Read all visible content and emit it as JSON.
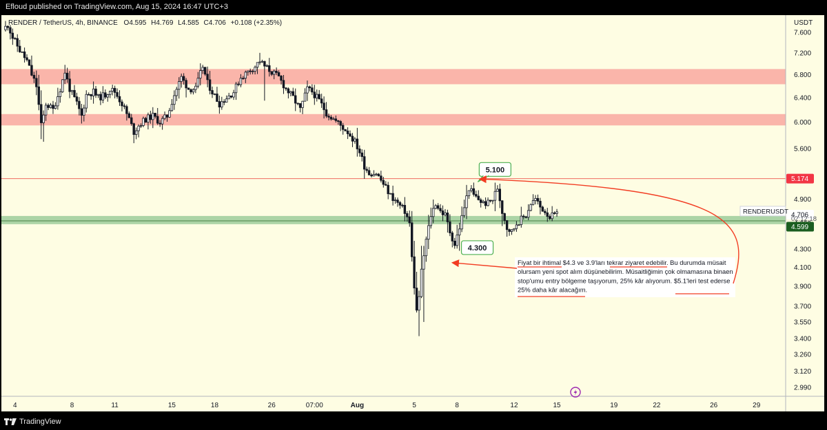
{
  "publisher": {
    "text": "Efloud published on TradingView.com, Aug 15, 2024 16:47 UTC+3"
  },
  "footer": {
    "brand": "TradingView",
    "logo_icon": "tradingview-logo-icon"
  },
  "chart_header": {
    "symbol": "RENDER / TetherUS, 4h, BINANCE",
    "open": "O4.595",
    "high": "H4.769",
    "low": "L4.585",
    "close": "C4.706",
    "change": "+0.108 (+2.35%)"
  },
  "chart_data": {
    "type": "candlestick",
    "symbol": "RENDERUSDT",
    "currency": "USDT",
    "timeframe": "4h",
    "exchange": "BINANCE",
    "y_scale": "log",
    "ylim": [
      2.92,
      7.95
    ],
    "y_ticks": [
      "7.600",
      "7.200",
      "6.800",
      "6.400",
      "6.000",
      "5.600",
      "5.200",
      "4.900",
      "4.600",
      "4.300",
      "4.100",
      "3.900",
      "3.700",
      "3.550",
      "3.400",
      "3.260",
      "3.120",
      "2.990"
    ],
    "x_ticks": [
      {
        "label": "4",
        "bar": 4
      },
      {
        "label": "8",
        "bar": 28
      },
      {
        "label": "11",
        "bar": 46
      },
      {
        "label": "15",
        "bar": 70
      },
      {
        "label": "18",
        "bar": 88
      },
      {
        "label": "26",
        "bar": 112
      },
      {
        "label": "07:00",
        "bar": 130
      },
      {
        "label": "Aug",
        "bar": 148
      },
      {
        "label": "5",
        "bar": 172
      },
      {
        "label": "8",
        "bar": 190
      },
      {
        "label": "12",
        "bar": 214
      },
      {
        "label": "15",
        "bar": 232
      },
      {
        "label": "19",
        "bar": 256
      },
      {
        "label": "22",
        "bar": 274
      },
      {
        "label": "26",
        "bar": 298
      },
      {
        "label": "29",
        "bar": 316
      }
    ],
    "bar_count_axis": 330,
    "anchors": [
      [
        0,
        7.65
      ],
      [
        2,
        7.75
      ],
      [
        4,
        7.5
      ],
      [
        7,
        7.25
      ],
      [
        10,
        7.05
      ],
      [
        12,
        6.8
      ],
      [
        14,
        6.6
      ],
      [
        16,
        5.95
      ],
      [
        17,
        6.1
      ],
      [
        18,
        6.3
      ],
      [
        21,
        6.2
      ],
      [
        24,
        6.55
      ],
      [
        26,
        6.85
      ],
      [
        28,
        6.55
      ],
      [
        31,
        6.3
      ],
      [
        33,
        6.1
      ],
      [
        35,
        6.45
      ],
      [
        38,
        6.5
      ],
      [
        40,
        6.4
      ],
      [
        43,
        6.45
      ],
      [
        45,
        6.55
      ],
      [
        47,
        6.5
      ],
      [
        50,
        6.3
      ],
      [
        53,
        6.05
      ],
      [
        55,
        5.85
      ],
      [
        57,
        5.95
      ],
      [
        60,
        6.05
      ],
      [
        63,
        6.1
      ],
      [
        66,
        6.0
      ],
      [
        69,
        6.1
      ],
      [
        72,
        6.45
      ],
      [
        75,
        6.75
      ],
      [
        78,
        6.55
      ],
      [
        81,
        6.55
      ],
      [
        84,
        6.95
      ],
      [
        86,
        6.65
      ],
      [
        88,
        6.5
      ],
      [
        91,
        6.3
      ],
      [
        94,
        6.4
      ],
      [
        97,
        6.5
      ],
      [
        100,
        6.75
      ],
      [
        103,
        6.85
      ],
      [
        106,
        6.95
      ],
      [
        108,
        7.05
      ],
      [
        110,
        6.95
      ],
      [
        113,
        6.85
      ],
      [
        116,
        6.75
      ],
      [
        119,
        6.55
      ],
      [
        122,
        6.4
      ],
      [
        125,
        6.2
      ],
      [
        128,
        6.55
      ],
      [
        130,
        6.5
      ],
      [
        133,
        6.35
      ],
      [
        136,
        6.15
      ],
      [
        139,
        6.05
      ],
      [
        142,
        5.95
      ],
      [
        145,
        5.85
      ],
      [
        148,
        5.7
      ],
      [
        150,
        5.55
      ],
      [
        152,
        5.35
      ],
      [
        154,
        5.25
      ],
      [
        157,
        5.25
      ],
      [
        160,
        5.1
      ],
      [
        163,
        4.95
      ],
      [
        166,
        4.85
      ],
      [
        169,
        4.75
      ],
      [
        171,
        4.6
      ],
      [
        172,
        4.2
      ],
      [
        173,
        3.9
      ],
      [
        174,
        3.65
      ],
      [
        175,
        3.8
      ],
      [
        176,
        4.05
      ],
      [
        178,
        4.4
      ],
      [
        180,
        4.7
      ],
      [
        182,
        4.85
      ],
      [
        184,
        4.75
      ],
      [
        186,
        4.7
      ],
      [
        188,
        4.5
      ],
      [
        190,
        4.35
      ],
      [
        192,
        4.55
      ],
      [
        194,
        4.8
      ],
      [
        196,
        5.05
      ],
      [
        198,
        4.95
      ],
      [
        200,
        4.9
      ],
      [
        202,
        4.85
      ],
      [
        204,
        4.85
      ],
      [
        206,
        4.9
      ],
      [
        208,
        5.05
      ],
      [
        210,
        4.75
      ],
      [
        212,
        4.55
      ],
      [
        214,
        4.5
      ],
      [
        216,
        4.6
      ],
      [
        218,
        4.65
      ],
      [
        220,
        4.7
      ],
      [
        222,
        4.85
      ],
      [
        224,
        4.9
      ],
      [
        226,
        4.8
      ],
      [
        228,
        4.75
      ],
      [
        230,
        4.68
      ],
      [
        232,
        4.7
      ]
    ],
    "spikes": [
      {
        "bar": 16,
        "low": 5.7
      },
      {
        "bar": 107,
        "high": 7.2
      },
      {
        "bar": 109,
        "low": 6.35
      },
      {
        "bar": 174,
        "low": 3.42
      },
      {
        "bar": 176,
        "low": 3.55
      },
      {
        "bar": 191,
        "low": 4.28
      },
      {
        "bar": 197,
        "high": 5.12
      }
    ],
    "zones": [
      {
        "name": "resistance-zone-upper",
        "from": 6.63,
        "to": 6.9,
        "color": "#f9a8a0"
      },
      {
        "name": "resistance-zone-lower",
        "from": 5.95,
        "to": 6.13,
        "color": "#f9a8a0"
      },
      {
        "name": "support-zone",
        "from": 4.59,
        "to": 4.69,
        "color": "#9dcc9b"
      }
    ],
    "lines": [
      {
        "name": "resistance-line",
        "price": 5.174,
        "color": "#f06b5f"
      },
      {
        "name": "support-line",
        "price": 4.63,
        "color": "#4a7f47"
      }
    ],
    "price_labels": [
      {
        "name": "price-label-5174",
        "price": 5.174,
        "text": "5.174",
        "bg": "#f23645",
        "fg": "#ffffff"
      },
      {
        "name": "price-label-4706",
        "price": 4.706,
        "text": "4.706",
        "bg": "#ffffff",
        "fg": "#131722"
      },
      {
        "name": "price-label-4599",
        "price": 4.56,
        "text": "4.599",
        "bg": "#1b5e20",
        "fg": "#ffffff"
      }
    ],
    "symbol_tag": {
      "text": "RENDERUSDT",
      "price": 4.75
    },
    "countdown": {
      "text": "02:12:18",
      "price": 4.66
    },
    "callouts": [
      {
        "name": "callout-5100",
        "text": "5.100",
        "bar": 197,
        "price": 5.13
      },
      {
        "name": "callout-4300",
        "text": "4.300",
        "bar": 193,
        "price": 4.3
      }
    ],
    "annotation": {
      "lines": [
        "Fiyat bir ihtimal $4.3 ve 3.9'ları tekrar ziyaret edebilir. Bu durumda müsait",
        "olursam yeni spot alım düşünebilirim. Müsaitliğimin çok olmamasına binaen",
        "stop'umu entry bölgeme taşıyorum, 25% kâr alıyorum. $5.1'leri test ederse",
        "25% daha kâr alacağım."
      ]
    },
    "colors": {
      "background": "#fefde3",
      "candle": "#131722",
      "arrow": "#f23c22",
      "axis": "#131722"
    }
  }
}
